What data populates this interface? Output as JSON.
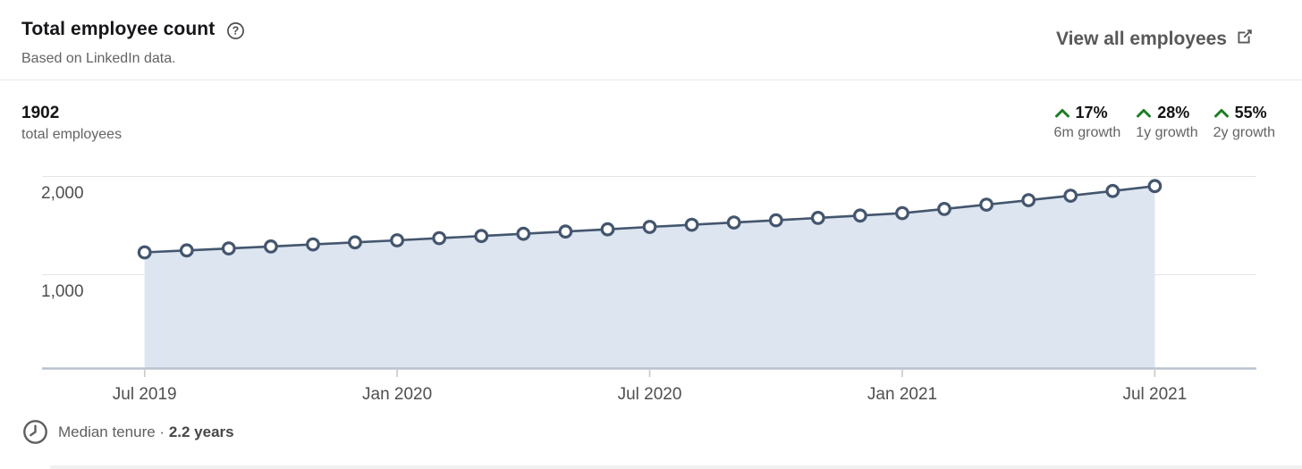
{
  "header": {
    "title": "Total employee count",
    "subtitle": "Based on LinkedIn data.",
    "view_all_label": "View all employees"
  },
  "stats": {
    "total_value": "1902",
    "total_label": "total employees",
    "growth": [
      {
        "value": "17%",
        "label": "6m growth"
      },
      {
        "value": "28%",
        "label": "1y growth"
      },
      {
        "value": "55%",
        "label": "2y growth"
      }
    ],
    "growth_color": "#1e7e25"
  },
  "chart_data": {
    "type": "area",
    "title": "Total employee count",
    "x": [
      "Jul 2019",
      "Aug 2019",
      "Sep 2019",
      "Oct 2019",
      "Nov 2019",
      "Dec 2019",
      "Jan 2020",
      "Feb 2020",
      "Mar 2020",
      "Apr 2020",
      "May 2020",
      "Jun 2020",
      "Jul 2020",
      "Aug 2020",
      "Sep 2020",
      "Oct 2020",
      "Nov 2020",
      "Dec 2020",
      "Jan 2021",
      "Feb 2021",
      "Mar 2021",
      "Apr 2021",
      "May 2021",
      "Jun 2021",
      "Jul 2021"
    ],
    "values": [
      1227,
      1247,
      1267,
      1287,
      1308,
      1329,
      1350,
      1372,
      1394,
      1416,
      1439,
      1462,
      1486,
      1508,
      1531,
      1554,
      1578,
      1602,
      1626,
      1669,
      1713,
      1758,
      1804,
      1852,
      1902
    ],
    "x_tick_indices": [
      0,
      6,
      12,
      18,
      24
    ],
    "x_tick_labels": [
      "Jul 2019",
      "Jan 2020",
      "Jul 2020",
      "Jan 2021",
      "Jul 2021"
    ],
    "y_gridlines": [
      {
        "value": 2000,
        "label": "2,000"
      },
      {
        "value": 1000,
        "label": "1,000"
      }
    ],
    "ylim": [
      40,
      2090
    ],
    "xlabel": "",
    "ylabel": "",
    "legend": "none",
    "grid": "horizontal",
    "colors": {
      "line": "#44566e",
      "area": "#dce5f0",
      "axis": "#b9c3cd",
      "grid": "#e4e4e4",
      "tick": "#c8c8c8",
      "marker_fill": "#ffffff"
    }
  },
  "footer": {
    "label": "Median tenure ·",
    "value": "2.2 years"
  }
}
